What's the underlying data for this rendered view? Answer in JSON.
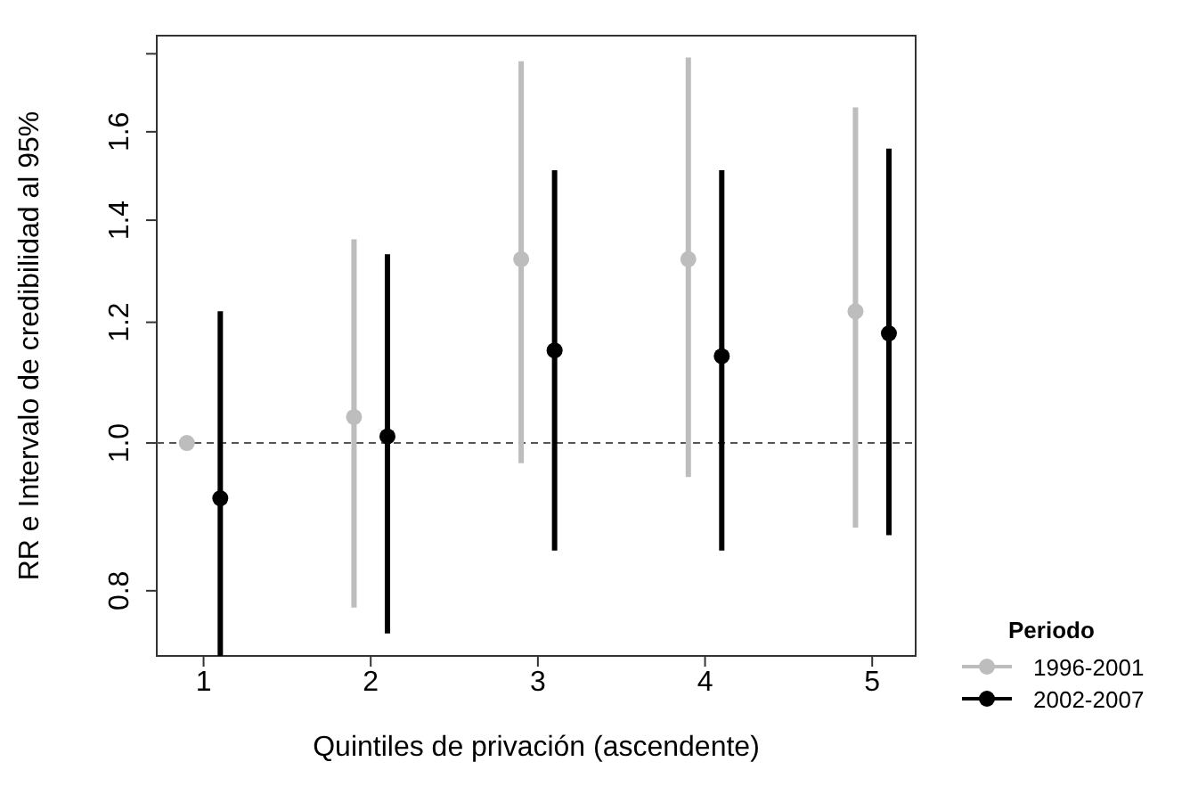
{
  "chart_data": {
    "type": "scatter",
    "xlabel": "Quintiles de privación (ascendente)",
    "ylabel": "RR e Intervalo de credibilidad al 95%",
    "legend_title": "Periodo",
    "legend": "right",
    "marker": "circle",
    "log": true,
    "categories": [
      "1",
      "2",
      "3",
      "4",
      "5"
    ],
    "ylim": [
      0.725,
      1.85
    ],
    "yticks": [
      0.8,
      {
        "value": 1,
        "label": "1.0"
      },
      1.2,
      1.4,
      1.6,
      {
        "value": 1.8,
        "label": null
      }
    ],
    "series": [
      {
        "name": "1996-2001",
        "color": "#bdbdbd",
        "values": [
          1.0,
          1.04,
          1.32,
          1.32,
          1.22
        ],
        "errors": [
          null,
          [
            0.78,
            1.36
          ],
          [
            0.97,
            1.78
          ],
          [
            0.95,
            1.79
          ],
          [
            0.88,
            1.66
          ]
        ]
      },
      {
        "name": "2002-2007",
        "color": "#000000",
        "values": [
          0.92,
          1.01,
          1.15,
          1.14,
          1.18
        ],
        "errors": [
          [
            0.725,
            1.22
          ],
          [
            0.75,
            1.33
          ],
          [
            0.85,
            1.51
          ],
          [
            0.85,
            1.51
          ],
          [
            0.87,
            1.56
          ]
        ]
      }
    ],
    "ref_lines": [
      {
        "axis": "y",
        "value": 1,
        "label": null,
        "color": "#555555",
        "line_style": "dashed"
      }
    ]
  }
}
